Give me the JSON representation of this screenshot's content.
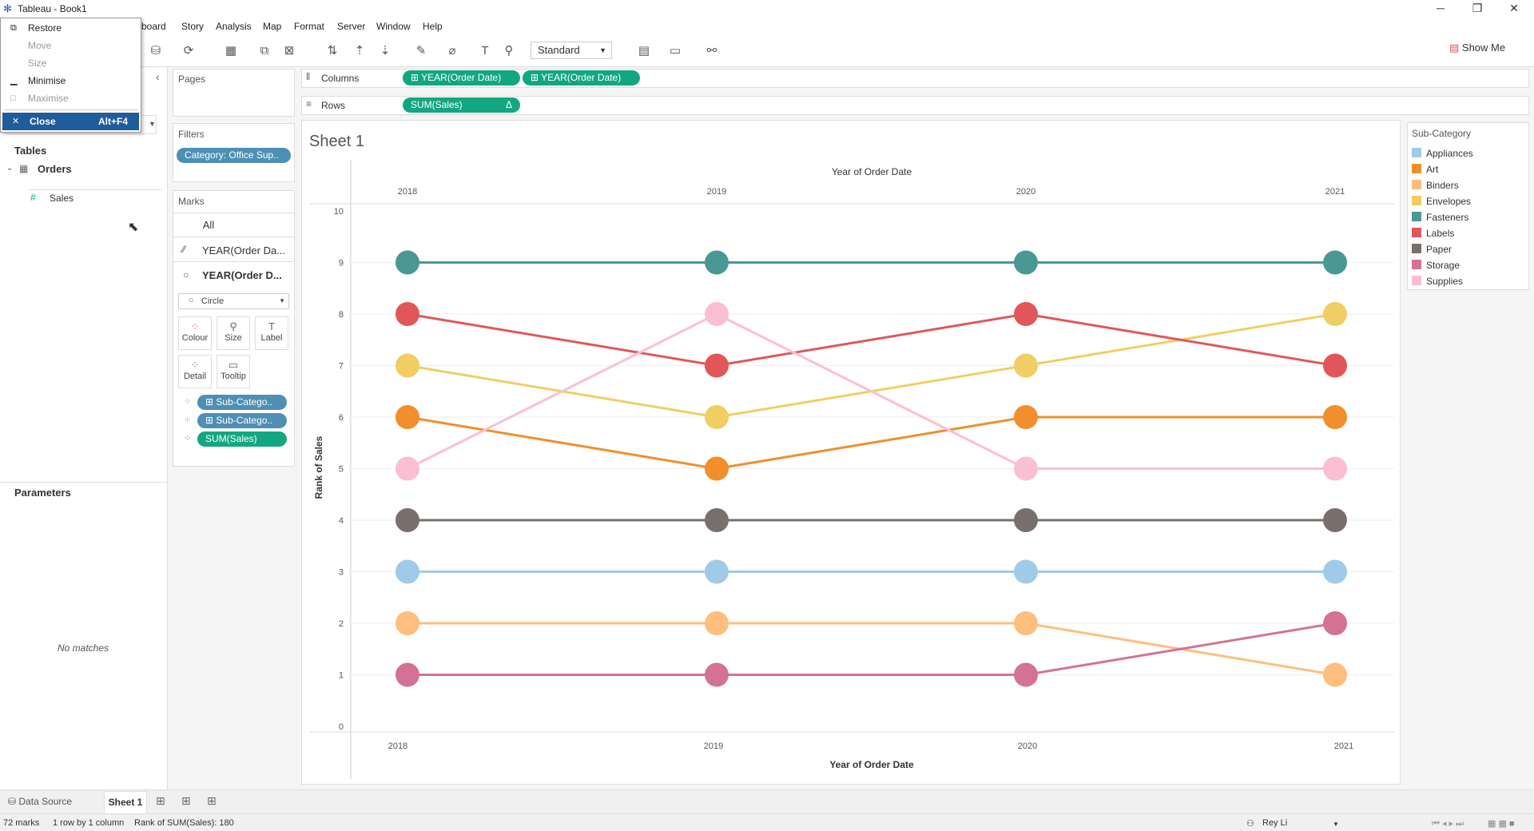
{
  "window": {
    "title": "Tableau - Book1",
    "min": "─",
    "max": "❐",
    "close": "✕"
  },
  "menu": [
    "board",
    "Story",
    "Analysis",
    "Map",
    "Format",
    "Server",
    "Window",
    "Help"
  ],
  "system_menu": {
    "restore": "Restore",
    "move": "Move",
    "size": "Size",
    "minimise": "Minimise",
    "maximise": "Maximise",
    "close": "Close",
    "close_shortcut": "Alt+F4"
  },
  "toolbar": {
    "fit": "Standard",
    "show_me": "Show Me"
  },
  "data_pane": {
    "tables_label": "Tables",
    "table_name": "Orders",
    "field": "Sales",
    "parameters_label": "Parameters",
    "no_matches": "No matches"
  },
  "shelves": {
    "pages": "Pages",
    "columns_label": "Columns",
    "rows_label": "Rows",
    "columns_pills": [
      "⊞ YEAR(Order Date)",
      "⊞ YEAR(Order Date)"
    ],
    "rows_pill": "SUM(Sales)",
    "rows_pill_delta": "Δ",
    "filters": "Filters",
    "filter_pill": "Category: Office Sup..",
    "marks": "Marks",
    "marks_all": "All",
    "marks_layer1": "YEAR(Order Da...",
    "marks_layer2": "YEAR(Order D...",
    "mark_type": "Circle",
    "buttons": {
      "colour": "Colour",
      "size": "Size",
      "label": "Label",
      "detail": "Detail",
      "tooltip": "Tooltip"
    },
    "mark_pills": [
      "⊞ Sub-Catego..",
      "⊞ Sub-Catego..",
      "SUM(Sales)"
    ]
  },
  "sheet": {
    "title": "Sheet 1"
  },
  "legend": {
    "title": "Sub-Category",
    "items": [
      {
        "name": "Appliances",
        "color": "#a0cbe8"
      },
      {
        "name": "Art",
        "color": "#f28e2b"
      },
      {
        "name": "Binders",
        "color": "#ffbe7d"
      },
      {
        "name": "Envelopes",
        "color": "#f1ce63"
      },
      {
        "name": "Fasteners",
        "color": "#499894"
      },
      {
        "name": "Labels",
        "color": "#e15759"
      },
      {
        "name": "Paper",
        "color": "#79706e"
      },
      {
        "name": "Storage",
        "color": "#d37295"
      },
      {
        "name": "Supplies",
        "color": "#fabfd2"
      }
    ]
  },
  "chart_data": {
    "type": "line",
    "title": "",
    "xlabel": "Year of Order Date",
    "top_label": "Year of Order Date",
    "ylabel": "Rank of Sales",
    "categories": [
      "2018",
      "2019",
      "2020",
      "2021"
    ],
    "ylim": [
      0,
      10
    ],
    "yticks": [
      "0",
      "1",
      "2",
      "3",
      "4",
      "5",
      "6",
      "7",
      "8",
      "9",
      "10"
    ],
    "grid": true,
    "series": [
      {
        "name": "Appliances",
        "color": "#a0cbe8",
        "values": [
          3,
          3,
          3,
          3
        ]
      },
      {
        "name": "Art",
        "color": "#f28e2b",
        "values": [
          6,
          5,
          6,
          6
        ]
      },
      {
        "name": "Binders",
        "color": "#ffbe7d",
        "values": [
          2,
          2,
          2,
          1
        ]
      },
      {
        "name": "Envelopes",
        "color": "#f1ce63",
        "values": [
          7,
          6,
          7,
          8
        ]
      },
      {
        "name": "Fasteners",
        "color": "#499894",
        "values": [
          9,
          9,
          9,
          9
        ]
      },
      {
        "name": "Labels",
        "color": "#e15759",
        "values": [
          8,
          7,
          8,
          7
        ]
      },
      {
        "name": "Paper",
        "color": "#79706e",
        "values": [
          4,
          4,
          4,
          4
        ]
      },
      {
        "name": "Storage",
        "color": "#d37295",
        "values": [
          1,
          1,
          1,
          2
        ]
      },
      {
        "name": "Supplies",
        "color": "#fabfd2",
        "values": [
          5,
          8,
          5,
          5
        ]
      }
    ]
  },
  "tabs": {
    "data_source": "Data Source",
    "sheet": "Sheet 1"
  },
  "status": {
    "marks": "72 marks",
    "rows_cols": "1 row by 1 column",
    "sum": "Rank of SUM(Sales): 180",
    "user": "Rey Li"
  }
}
